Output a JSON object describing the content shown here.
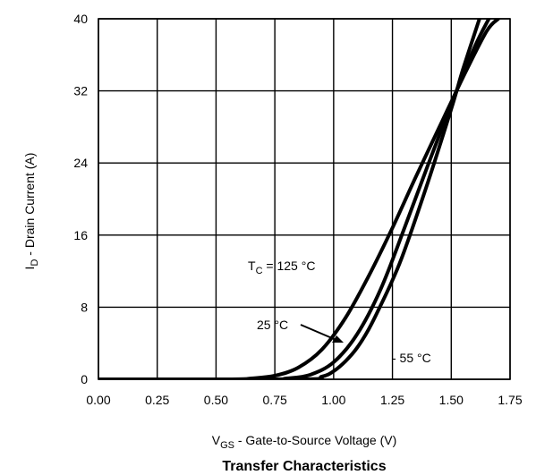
{
  "chart_data": {
    "type": "line",
    "title": "Transfer Characteristics",
    "xlabel": {
      "main": "V",
      "sub": "GS",
      "rest": " - Gate-to-Source Voltage (V)"
    },
    "ylabel": {
      "main": "I",
      "sub": "D",
      "rest": " - Drain Current (A)"
    },
    "xlim": [
      0,
      1.75
    ],
    "ylim": [
      0,
      40
    ],
    "xticks": [
      "0.00",
      "0.25",
      "0.50",
      "0.75",
      "1.00",
      "1.25",
      "1.50",
      "1.75"
    ],
    "yticks": [
      "0",
      "8",
      "16",
      "24",
      "32",
      "40"
    ],
    "grid": true,
    "series": [
      {
        "name": "125 °C",
        "x": [
          0,
          0.55,
          0.65,
          0.75,
          0.85,
          0.95,
          1.05,
          1.15,
          1.25,
          1.35,
          1.45,
          1.55,
          1.65,
          1.7
        ],
        "y": [
          0,
          0,
          0.1,
          0.4,
          1.3,
          3.3,
          6.8,
          11.5,
          16.8,
          22.5,
          28.0,
          33.5,
          38.6,
          40
        ]
      },
      {
        "name": "25 °C",
        "x": [
          0,
          0.7,
          0.8,
          0.9,
          1.0,
          1.1,
          1.2,
          1.3,
          1.4,
          1.5,
          1.6,
          1.66
        ],
        "y": [
          0,
          0,
          0.1,
          0.5,
          1.9,
          5.0,
          10.0,
          16.7,
          23.7,
          30.5,
          36.9,
          40
        ]
      },
      {
        "name": "- 55 °C",
        "x": [
          0,
          0.85,
          0.95,
          1.0,
          1.05,
          1.1,
          1.15,
          1.2,
          1.25,
          1.3,
          1.4,
          1.5,
          1.55,
          1.62
        ],
        "y": [
          0,
          0,
          0.3,
          0.9,
          2.0,
          3.5,
          5.6,
          8.2,
          11.0,
          14.2,
          21.8,
          30.0,
          34.4,
          40
        ]
      }
    ],
    "annotations": {
      "tc_label": {
        "main": "T",
        "sub": "C",
        "rest": " = 125 °C"
      },
      "label_25": "25 °C",
      "label_m55": "- 55 °C"
    }
  }
}
